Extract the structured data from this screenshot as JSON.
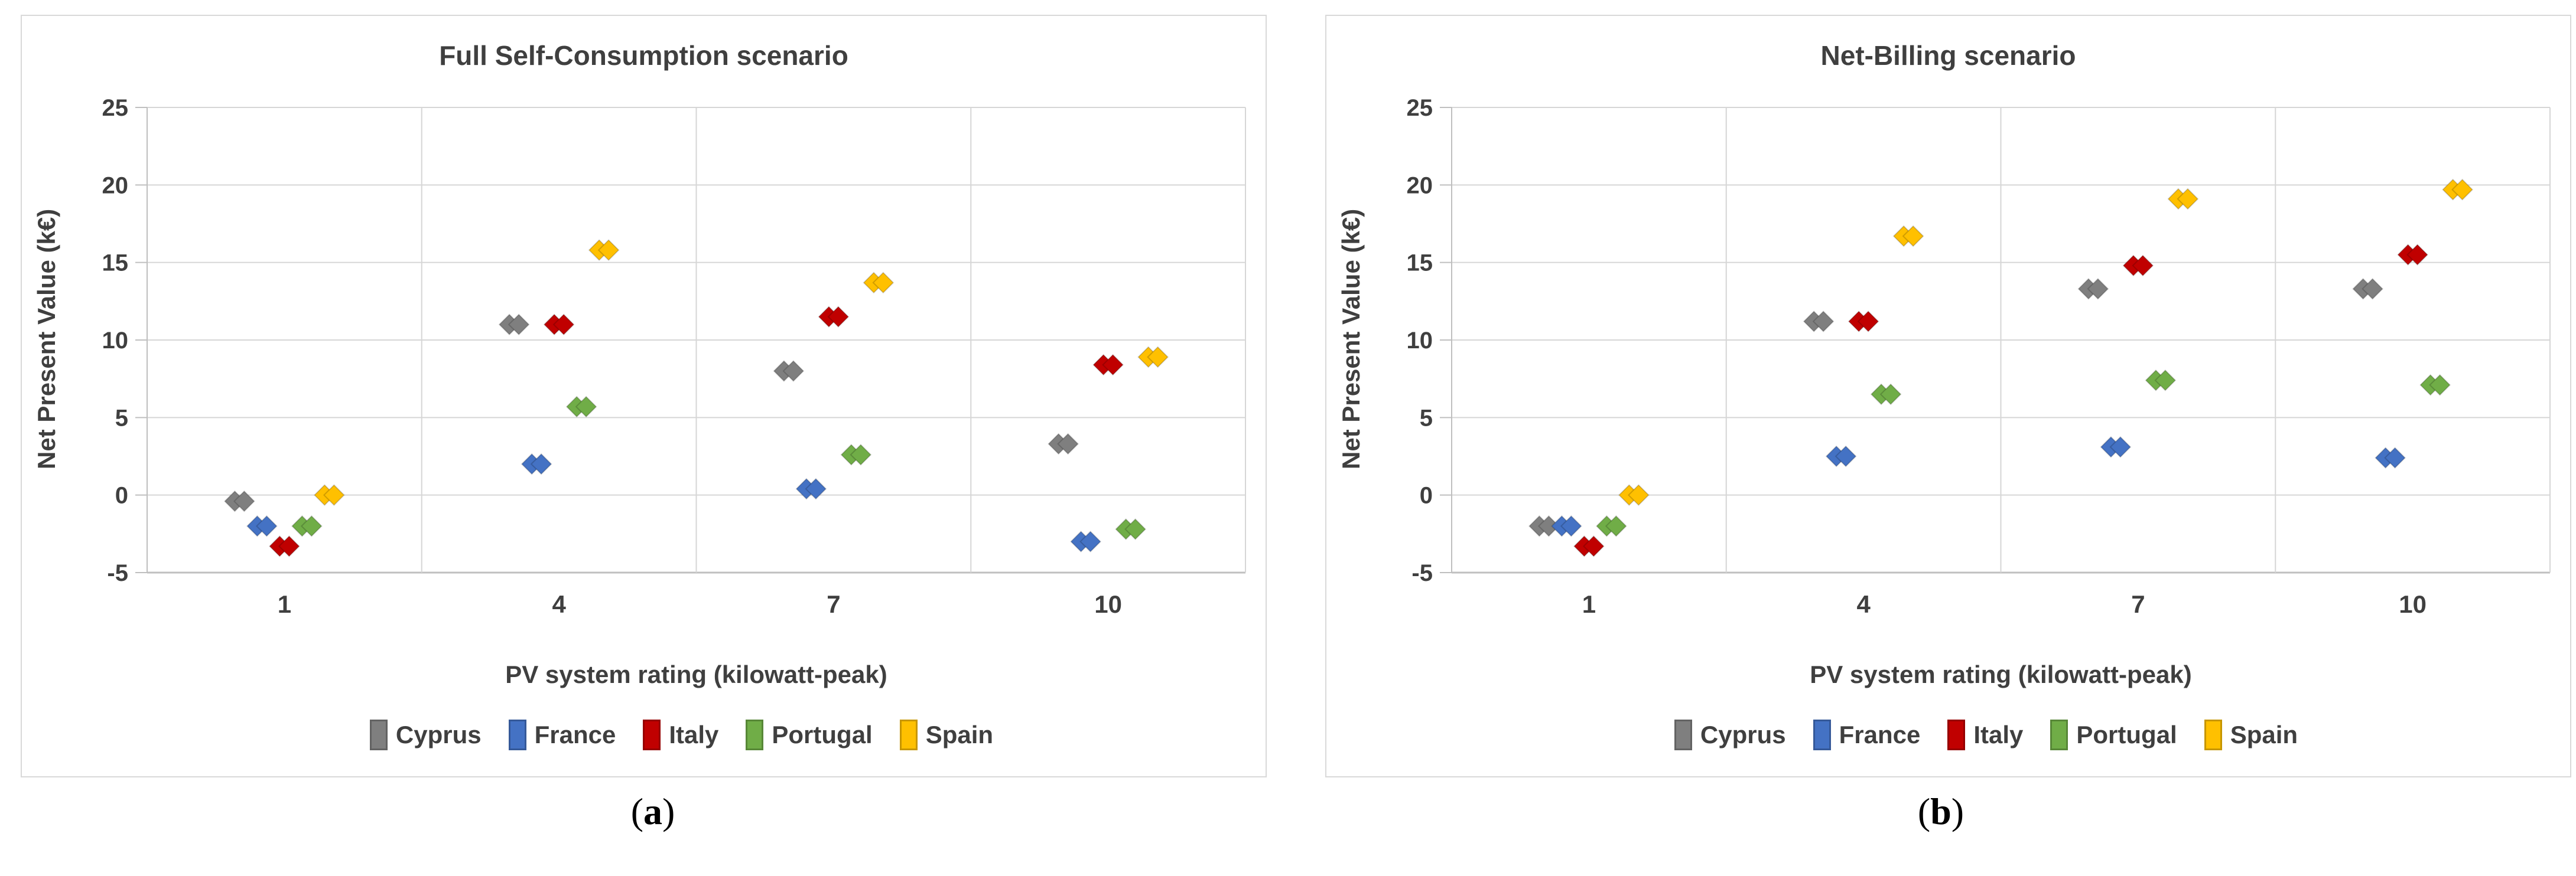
{
  "figure": {
    "captions": [
      {
        "open": "(",
        "letter": "a",
        "close": ")"
      },
      {
        "open": "(",
        "letter": "b",
        "close": ")"
      }
    ]
  },
  "colors": {
    "grid": "#d6d6d6",
    "axis": "#bfbfbf",
    "text": "#3f3f3f",
    "panel_border": "#d9d9d9"
  },
  "chart_data": [
    {
      "type": "scatter",
      "title": "Full Self-Consumption scenario",
      "xlabel": "PV system rating (kilowatt-peak)",
      "ylabel": "Net Present Value (k€)",
      "categories": [
        "1",
        "4",
        "7",
        "10"
      ],
      "ylim": [
        -5,
        25
      ],
      "ytick_step": 5,
      "grid": true,
      "legend_position": "bottom",
      "series": [
        {
          "name": "Cyprus",
          "color": "#7f7f7f",
          "values": [
            -0.4,
            11.0,
            8.0,
            3.3
          ]
        },
        {
          "name": "France",
          "color": "#4472c4",
          "values": [
            -2.0,
            2.0,
            0.4,
            -3.0
          ]
        },
        {
          "name": "Italy",
          "color": "#c00000",
          "values": [
            -3.3,
            11.0,
            11.5,
            8.4
          ]
        },
        {
          "name": "Portugal",
          "color": "#70ad47",
          "values": [
            -2.0,
            5.7,
            2.6,
            -2.2
          ]
        },
        {
          "name": "Spain",
          "color": "#ffc000",
          "values": [
            0.0,
            15.8,
            13.7,
            8.9
          ]
        }
      ]
    },
    {
      "type": "scatter",
      "title": "Net-Billing scenario",
      "xlabel": "PV system rating (kilowatt-peak)",
      "ylabel": "Net Present Value (k€)",
      "categories": [
        "1",
        "4",
        "7",
        "10"
      ],
      "ylim": [
        -5,
        25
      ],
      "ytick_step": 5,
      "grid": true,
      "legend_position": "bottom",
      "series": [
        {
          "name": "Cyprus",
          "color": "#7f7f7f",
          "values": [
            -2.0,
            11.2,
            13.3,
            13.3
          ]
        },
        {
          "name": "France",
          "color": "#4472c4",
          "values": [
            -2.0,
            2.5,
            3.1,
            2.4
          ]
        },
        {
          "name": "Italy",
          "color": "#c00000",
          "values": [
            -3.3,
            11.2,
            14.8,
            15.5
          ]
        },
        {
          "name": "Portugal",
          "color": "#70ad47",
          "values": [
            -2.0,
            6.5,
            7.4,
            7.1
          ]
        },
        {
          "name": "Spain",
          "color": "#ffc000",
          "values": [
            0.0,
            16.7,
            19.1,
            19.7
          ]
        }
      ]
    }
  ]
}
